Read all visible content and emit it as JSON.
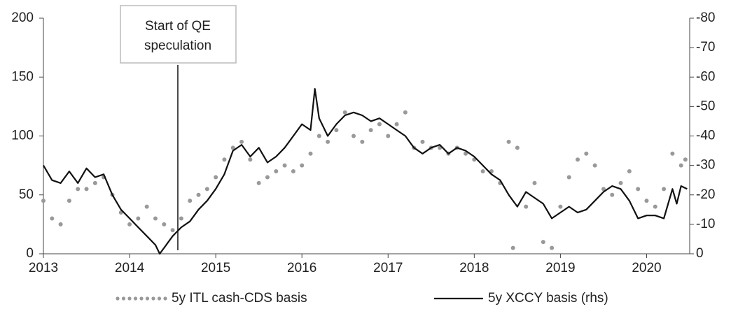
{
  "chart_data": {
    "type": "line",
    "annotation": {
      "text_lines": [
        "Start of QE",
        "speculation"
      ],
      "x": 2014.56
    },
    "xlim": [
      2013,
      2020.5
    ],
    "xticks": [
      2013,
      2014,
      2015,
      2016,
      2017,
      2018,
      2019,
      2020
    ],
    "ylim": [
      0,
      200
    ],
    "yticks": [
      0,
      50,
      100,
      150,
      200
    ],
    "y2lim": [
      0,
      -80
    ],
    "y2ticks": [
      0,
      -10,
      -20,
      -30,
      -40,
      -50,
      -60,
      -70,
      -80
    ],
    "series": [
      {
        "name": "5y ITL cash-CDS basis",
        "color": "#999999",
        "style": "dotted",
        "x": [
          2013.0,
          2013.1,
          2013.2,
          2013.3,
          2013.4,
          2013.5,
          2013.6,
          2013.7,
          2013.8,
          2013.9,
          2014.0,
          2014.1,
          2014.2,
          2014.3,
          2014.4,
          2014.5,
          2014.6,
          2014.7,
          2014.8,
          2014.9,
          2015.0,
          2015.1,
          2015.2,
          2015.3,
          2015.4,
          2015.5,
          2015.6,
          2015.7,
          2015.8,
          2015.9,
          2016.0,
          2016.1,
          2016.2,
          2016.3,
          2016.4,
          2016.5,
          2016.6,
          2016.7,
          2016.8,
          2016.9,
          2017.0,
          2017.1,
          2017.2,
          2017.3,
          2017.4,
          2017.5,
          2017.6,
          2017.7,
          2017.8,
          2017.9,
          2018.0,
          2018.1,
          2018.2,
          2018.3,
          2018.4,
          2018.45,
          2018.5,
          2018.6,
          2018.7,
          2018.8,
          2018.9,
          2019.0,
          2019.1,
          2019.2,
          2019.3,
          2019.4,
          2019.5,
          2019.6,
          2019.7,
          2019.8,
          2019.9,
          2020.0,
          2020.1,
          2020.2,
          2020.3,
          2020.4,
          2020.45
        ],
        "values": [
          45,
          30,
          25,
          45,
          55,
          55,
          60,
          65,
          50,
          35,
          25,
          30,
          40,
          30,
          25,
          20,
          30,
          45,
          50,
          55,
          65,
          80,
          90,
          95,
          80,
          60,
          65,
          70,
          75,
          70,
          75,
          85,
          100,
          95,
          105,
          120,
          100,
          95,
          105,
          110,
          100,
          110,
          120,
          90,
          95,
          90,
          90,
          85,
          90,
          85,
          80,
          70,
          70,
          60,
          95,
          5,
          90,
          40,
          60,
          10,
          5,
          40,
          65,
          80,
          85,
          75,
          55,
          50,
          60,
          70,
          55,
          45,
          40,
          55,
          85,
          75,
          80
        ]
      },
      {
        "name": "5y XCCY basis (rhs)",
        "color": "#111111",
        "style": "solid",
        "axis": "y2",
        "x": [
          2013.0,
          2013.1,
          2013.2,
          2013.3,
          2013.4,
          2013.5,
          2013.6,
          2013.7,
          2013.8,
          2013.9,
          2014.0,
          2014.1,
          2014.2,
          2014.3,
          2014.35,
          2014.4,
          2014.5,
          2014.6,
          2014.7,
          2014.8,
          2014.9,
          2015.0,
          2015.1,
          2015.2,
          2015.3,
          2015.4,
          2015.5,
          2015.6,
          2015.7,
          2015.8,
          2015.9,
          2016.0,
          2016.1,
          2016.15,
          2016.2,
          2016.3,
          2016.4,
          2016.5,
          2016.6,
          2016.7,
          2016.8,
          2016.9,
          2017.0,
          2017.1,
          2017.2,
          2017.3,
          2017.4,
          2017.5,
          2017.6,
          2017.7,
          2017.8,
          2017.9,
          2018.0,
          2018.1,
          2018.2,
          2018.3,
          2018.4,
          2018.5,
          2018.6,
          2018.7,
          2018.8,
          2018.9,
          2019.0,
          2019.1,
          2019.2,
          2019.3,
          2019.4,
          2019.5,
          2019.6,
          2019.7,
          2019.8,
          2019.9,
          2020.0,
          2020.1,
          2020.2,
          2020.3,
          2020.35,
          2020.4,
          2020.47
        ],
        "values": [
          -30,
          -25,
          -24,
          -28,
          -24,
          -29,
          -26,
          -27,
          -20,
          -15,
          -12,
          -9,
          -6,
          -3,
          0,
          -2,
          -6,
          -9,
          -11,
          -15,
          -18,
          -22,
          -27,
          -35,
          -37,
          -33,
          -36,
          -31,
          -33,
          -36,
          -40,
          -44,
          -42,
          -56,
          -46,
          -40,
          -44,
          -47,
          -48,
          -47,
          -45,
          -46,
          -44,
          -42,
          -40,
          -36,
          -34,
          -36,
          -37,
          -34,
          -36,
          -35,
          -33,
          -30,
          -27,
          -25,
          -20,
          -16,
          -21,
          -19,
          -17,
          -12,
          -14,
          -16,
          -14,
          -15,
          -18,
          -21,
          -23,
          -22,
          -18,
          -12,
          -13,
          -13,
          -12,
          -22,
          -17,
          -23,
          -22
        ]
      }
    ]
  }
}
